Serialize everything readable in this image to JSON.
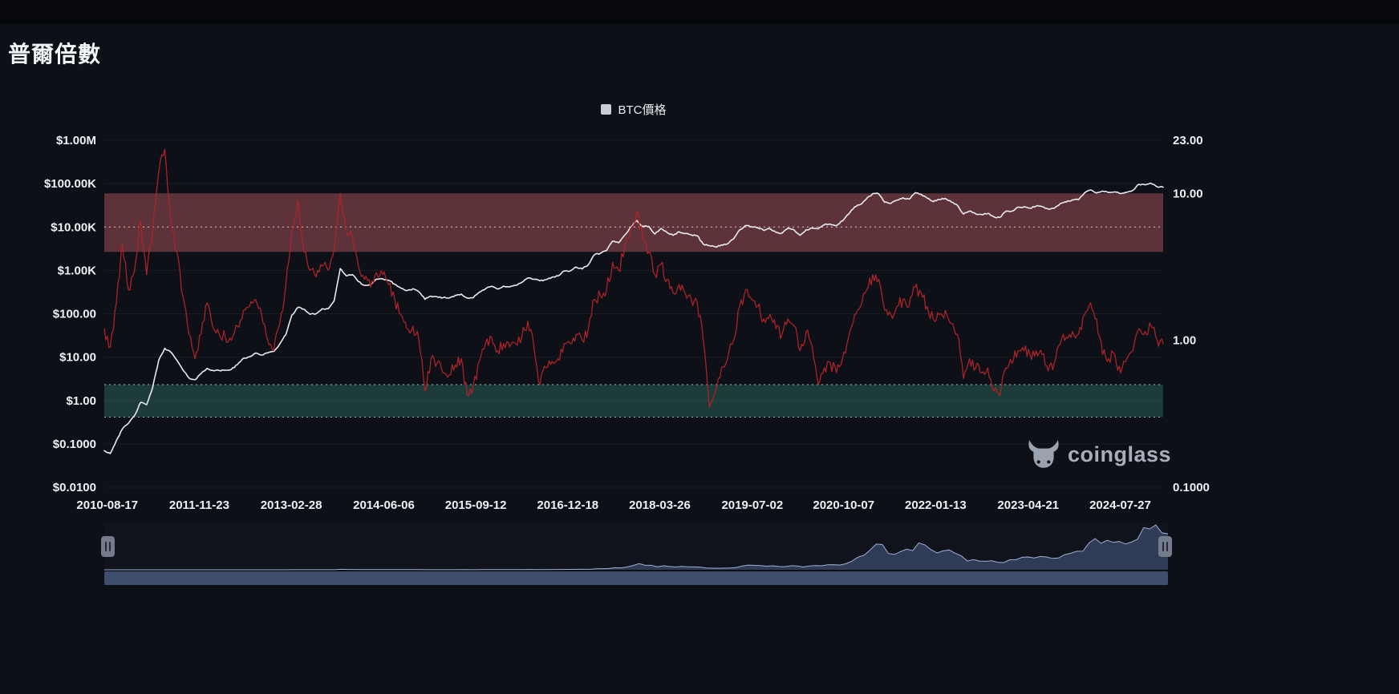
{
  "page": {
    "title": "普爾倍數"
  },
  "legend": {
    "items": [
      {
        "label": "BTC價格",
        "color": "#c9cdd3"
      }
    ]
  },
  "watermark": {
    "text": "coinglass"
  },
  "navigator": {
    "handle_icon": "drag-handle-icon"
  },
  "chart_data": {
    "type": "line",
    "title": "普爾倍數",
    "x_unit": "month",
    "x_start": "2010-08",
    "x_count": 176,
    "x_ticks": [
      {
        "label": "2010-08-17",
        "index": 0.5
      },
      {
        "label": "2011-11-23",
        "index": 15.7
      },
      {
        "label": "2013-02-28",
        "index": 30.9
      },
      {
        "label": "2014-06-06",
        "index": 46.2
      },
      {
        "label": "2015-09-12",
        "index": 61.4
      },
      {
        "label": "2016-12-18",
        "index": 76.6
      },
      {
        "label": "2018-03-26",
        "index": 91.8
      },
      {
        "label": "2019-07-02",
        "index": 107.1
      },
      {
        "label": "2020-10-07",
        "index": 122.2
      },
      {
        "label": "2022-01-13",
        "index": 137.4
      },
      {
        "label": "2023-04-21",
        "index": 152.7
      },
      {
        "label": "2024-07-27",
        "index": 167.9
      }
    ],
    "left_axis": {
      "scale": "log",
      "min": 0.01,
      "max": 1000000,
      "ticks": [
        {
          "label": "$1.00M",
          "value": 1000000
        },
        {
          "label": "$100.00K",
          "value": 100000
        },
        {
          "label": "$10.00K",
          "value": 10000
        },
        {
          "label": "$1.00K",
          "value": 1000
        },
        {
          "label": "$100.00",
          "value": 100
        },
        {
          "label": "$10.00",
          "value": 10
        },
        {
          "label": "$1.00",
          "value": 1
        },
        {
          "label": "$0.1000",
          "value": 0.1
        },
        {
          "label": "$0.0100",
          "value": 0.01
        }
      ]
    },
    "right_axis": {
      "scale": "log",
      "min": 0.1,
      "max": 23,
      "ticks": [
        {
          "label": "23.00",
          "value": 23
        },
        {
          "label": "10.00",
          "value": 10
        },
        {
          "label": "1.00",
          "value": 1
        },
        {
          "label": "0.1000",
          "value": 0.1
        }
      ]
    },
    "bands": [
      {
        "name": "sell-zone-band",
        "axis": "right",
        "from": 4,
        "to": 10,
        "color": "rgba(173,86,92,0.5)"
      },
      {
        "name": "buy-zone-band",
        "axis": "right",
        "from": 0.3,
        "to": 0.5,
        "color": "rgba(64,148,126,0.33)"
      }
    ],
    "ref_lines": [
      {
        "axis": "left",
        "value": 10000,
        "color": "rgba(235,238,242,0.8)"
      },
      {
        "axis": "right",
        "value": 0.5,
        "color": "rgba(210,232,225,0.7)"
      },
      {
        "axis": "right",
        "value": 0.3,
        "color": "rgba(210,232,225,0.7)"
      }
    ],
    "grid": {
      "show": true,
      "color": "rgba(255,255,255,0.05)"
    },
    "series": [
      {
        "id": "btc-price",
        "name": "BTC價格",
        "axis": "left",
        "color": "#e9ebef",
        "width": 1.6,
        "values": [
          0.07,
          0.06,
          0.12,
          0.22,
          0.3,
          0.45,
          0.9,
          0.8,
          2,
          8.5,
          16,
          13,
          8.5,
          5,
          3.3,
          3,
          4.2,
          5.5,
          4.9,
          4.9,
          5,
          5.2,
          6.7,
          9.4,
          10.2,
          12.4,
          11.2,
          12.5,
          13.5,
          20,
          33,
          93,
          140,
          128,
          97,
          100,
          130,
          130,
          200,
          1100,
          750,
          800,
          550,
          450,
          450,
          630,
          640,
          590,
          480,
          390,
          340,
          375,
          320,
          215,
          255,
          245,
          235,
          230,
          265,
          285,
          230,
          235,
          315,
          375,
          430,
          370,
          435,
          415,
          450,
          530,
          670,
          625,
          575,
          610,
          700,
          745,
          965,
          970,
          1190,
          1080,
          1350,
          2300,
          2480,
          2875,
          4700,
          4340,
          6470,
          9900,
          14100,
          10200,
          10300,
          6900,
          9250,
          7500,
          6400,
          7750,
          7030,
          6600,
          6300,
          4020,
          3740,
          3460,
          3850,
          4100,
          5320,
          8560,
          10800,
          10100,
          9600,
          8300,
          9150,
          7550,
          7200,
          9350,
          8550,
          6440,
          8620,
          9450,
          9140,
          11350,
          11650,
          10780,
          13800,
          19700,
          29000,
          33100,
          45200,
          58800,
          57800,
          37300,
          35000,
          41600,
          47100,
          43800,
          61300,
          57000,
          46200,
          38500,
          43200,
          45500,
          37700,
          31800,
          19900,
          23300,
          20050,
          19400,
          20500,
          17200,
          16550,
          23100,
          23150,
          28500,
          29250,
          27200,
          30480,
          29230,
          25940,
          26960,
          34650,
          37700,
          42280,
          42580,
          61200,
          71300,
          60640,
          67500,
          62680,
          64600,
          58970,
          63330,
          70200,
          96400,
          93400,
          102400,
          84400,
          82500
        ]
      },
      {
        "id": "puell-multiple",
        "name": "普爾倍數",
        "axis": "right",
        "color": "#ab2328",
        "width": 1.3,
        "values": [
          1.2,
          0.9,
          1.8,
          4.5,
          2.2,
          3,
          6.5,
          2.8,
          5.5,
          14,
          20,
          6.5,
          4,
          2,
          1.1,
          0.75,
          1.1,
          1.8,
          1.2,
          1.1,
          1.05,
          1,
          1.25,
          1.6,
          1.7,
          1.9,
          1.5,
          1,
          0.85,
          1.3,
          2.4,
          5.5,
          9,
          4,
          3,
          2.7,
          3.2,
          3,
          4.2,
          10,
          5.5,
          5,
          3.2,
          2.6,
          2.3,
          2.9,
          2.8,
          2.4,
          1.9,
          1.5,
          1.2,
          1.25,
          1,
          0.45,
          0.75,
          0.7,
          0.6,
          0.58,
          0.68,
          0.75,
          0.42,
          0.5,
          0.72,
          0.95,
          1.05,
          0.85,
          0.95,
          0.9,
          0.95,
          1.05,
          1.35,
          0.9,
          0.5,
          0.65,
          0.72,
          0.75,
          0.95,
          0.95,
          1.1,
          1,
          1.2,
          1.9,
          2,
          2.2,
          3.4,
          3,
          4.2,
          5.8,
          7.5,
          5,
          4,
          2.8,
          3.3,
          2.6,
          2.1,
          2.4,
          2.1,
          1.9,
          1.8,
          1,
          0.35,
          0.45,
          0.65,
          0.75,
          1,
          1.7,
          2.2,
          1.9,
          1.7,
          1.4,
          1.5,
          1.2,
          1.1,
          1.4,
          1.25,
          0.85,
          1.15,
          0.9,
          0.5,
          0.65,
          0.7,
          0.6,
          0.75,
          1.05,
          1.5,
          1.7,
          2.2,
          2.8,
          2.6,
          1.6,
          1.5,
          1.7,
          1.9,
          1.7,
          2.3,
          2.1,
          1.7,
          1.4,
          1.5,
          1.6,
          1.3,
          1.1,
          0.55,
          0.75,
          0.65,
          0.6,
          0.65,
          0.45,
          0.42,
          0.65,
          0.7,
          0.85,
          0.85,
          0.8,
          0.85,
          0.8,
          0.62,
          0.7,
          0.95,
          1.05,
          1.15,
          1.1,
          1.5,
          1.8,
          1.4,
          0.8,
          0.75,
          0.8,
          0.6,
          0.75,
          0.85,
          1.2,
          1.15,
          1.25,
          1,
          0.95
        ]
      }
    ]
  }
}
